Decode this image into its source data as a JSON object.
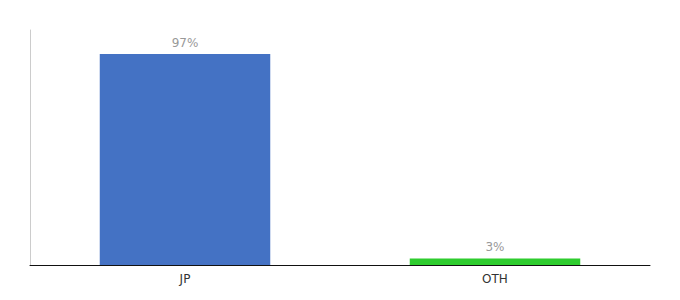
{
  "chart_data": {
    "type": "bar",
    "categories": [
      "JP",
      "OTH"
    ],
    "values": [
      97,
      3
    ],
    "value_labels": [
      "97%",
      "3%"
    ],
    "colors": [
      "#4472c4",
      "#2ecc2e"
    ],
    "ylim": [
      0,
      108
    ],
    "grid": false,
    "data_labels": true,
    "tick_labels": "x"
  }
}
